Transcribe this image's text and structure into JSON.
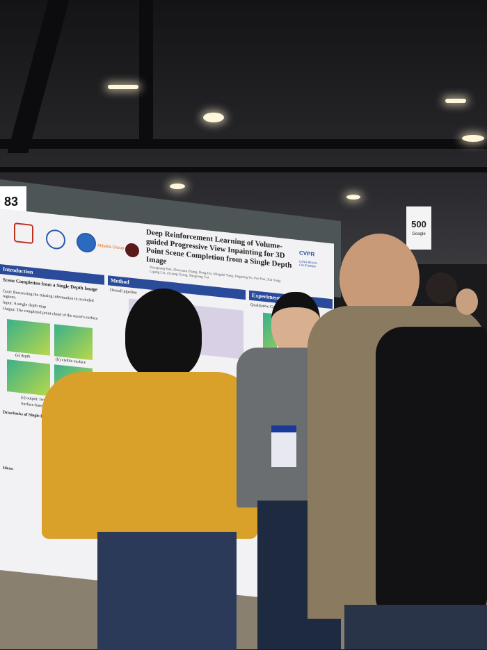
{
  "scene": {
    "booth_number": "83",
    "aisle_sign": {
      "number": "500",
      "sponsor": "Google"
    },
    "colors": {
      "poster_header": "#2a4a9a",
      "yellow_blouse": "#d9a02a",
      "jacket": "#8a7a60"
    }
  },
  "poster": {
    "title": "Deep Reinforcement Learning of Volume-guided Progressive View Inpainting for 3D Point Scene Completion from a Single Depth Image",
    "authors": "Xiaoguang Han, Zhaoxuan Zhang, Dong Du, Mingdai Yang, Jingming Yu, Pan Pan, Xin Yang, Ligang Liu, Zixiang Xiong, Shuguang Cui",
    "logo_alibaba": "Alibaba Group",
    "logo_cvpr": "CVPR",
    "venue": "LONG BEACH CALIFORNIA",
    "sections": {
      "intro_header": "Introduction",
      "intro_sub": "Scene Completion from a Single Depth Image",
      "goal": "Goal: Recovering the missing information in occluded regions.",
      "input": "Input: A single depth map",
      "output": "Output: The completed point cloud of the scene's surface",
      "caption_a": "(a) depth",
      "caption_b": "(b) visible surface",
      "caption_c": "(c) output: two views",
      "caption_d": "Surface-based scene Completion",
      "drawbacks": "Drawbacks of Single Depth Image Based 3D Scene...",
      "ideas": "Ideas:",
      "method_header": "Method",
      "method_sub": "Overall pipeline",
      "experiments_header": "Experiments",
      "experiments_sub": "Qualitative Comparisons"
    }
  }
}
